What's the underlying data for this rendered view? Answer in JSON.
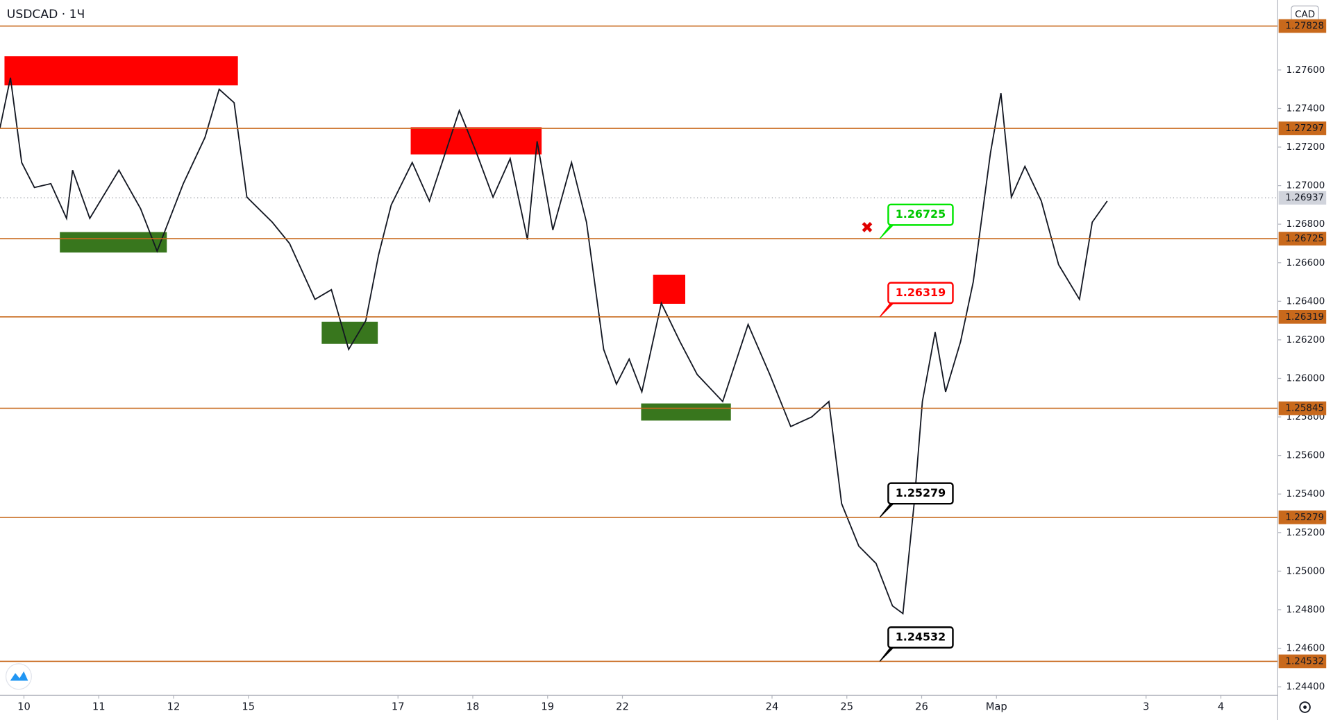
{
  "chart_data": {
    "type": "line",
    "title": "USDCAD · 1Ч",
    "currency": "CAD",
    "color": "#131722",
    "x": [
      -0.32,
      -0.18,
      -0.03,
      0.14,
      0.36,
      0.57,
      0.65,
      0.88,
      1.27,
      1.56,
      1.78,
      2.13,
      2.42,
      2.61,
      2.81,
      2.98,
      3.32,
      3.55,
      3.89,
      4.11,
      4.34,
      4.57,
      4.74,
      4.91,
      5.19,
      5.42,
      5.59,
      5.82,
      6.05,
      6.27,
      6.5,
      6.73,
      6.86,
      7.07,
      7.32,
      7.52,
      7.75,
      7.92,
      8.09,
      8.26,
      8.52,
      8.77,
      9.0,
      9.34,
      9.68,
      9.97,
      10.25,
      10.53,
      10.76,
      10.93,
      11.16,
      11.39,
      11.61,
      11.75,
      11.9,
      12.01,
      12.18,
      12.32,
      12.52,
      12.69,
      12.92,
      13.06,
      13.2,
      13.38,
      13.6,
      13.83,
      14.11,
      14.28,
      14.48
    ],
    "values": [
      1.273,
      1.2756,
      1.2712,
      1.2699,
      1.2701,
      1.2683,
      1.2708,
      1.2683,
      1.2708,
      1.2688,
      1.2666,
      1.2701,
      1.2725,
      1.275,
      1.2743,
      1.2694,
      1.2681,
      1.267,
      1.2641,
      1.2646,
      1.2615,
      1.263,
      1.2664,
      1.269,
      1.2712,
      1.2692,
      1.2712,
      1.2739,
      1.2717,
      1.2694,
      1.2714,
      1.2672,
      1.2723,
      1.2677,
      1.2712,
      1.2681,
      1.2615,
      1.2597,
      1.261,
      1.2593,
      1.2639,
      1.2619,
      1.2602,
      1.2588,
      1.2628,
      1.2602,
      1.2575,
      1.258,
      1.2588,
      1.2535,
      1.2513,
      1.2504,
      1.2482,
      1.2478,
      1.2535,
      1.2588,
      1.2624,
      1.2593,
      1.2619,
      1.265,
      1.2717,
      1.2748,
      1.2694,
      1.271,
      1.2692,
      1.2659,
      1.2641,
      1.2681,
      1.2692
    ],
    "xlim": [
      -0.32,
      16.76
    ],
    "ylim": [
      1.24356,
      1.27963
    ],
    "xticks": [
      {
        "value": 0,
        "label": "10"
      },
      {
        "value": 1,
        "label": "11"
      },
      {
        "value": 2,
        "label": "12"
      },
      {
        "value": 3,
        "label": "15"
      },
      {
        "value": 5,
        "label": "17"
      },
      {
        "value": 6,
        "label": "18"
      },
      {
        "value": 7,
        "label": "19"
      },
      {
        "value": 8,
        "label": "22"
      },
      {
        "value": 10,
        "label": "24"
      },
      {
        "value": 11,
        "label": "25"
      },
      {
        "value": 12,
        "label": "26"
      },
      {
        "value": 13,
        "label": "Мар"
      },
      {
        "value": 15,
        "label": "3"
      },
      {
        "value": 16,
        "label": "4"
      }
    ],
    "yticks": [
      {
        "value": 1.244,
        "label": "1.24400"
      },
      {
        "value": 1.246,
        "label": "1.24600"
      },
      {
        "value": 1.248,
        "label": "1.24800"
      },
      {
        "value": 1.25,
        "label": "1.25000"
      },
      {
        "value": 1.252,
        "label": "1.25200"
      },
      {
        "value": 1.254,
        "label": "1.25400"
      },
      {
        "value": 1.256,
        "label": "1.25600"
      },
      {
        "value": 1.258,
        "label": "1.25800"
      },
      {
        "value": 1.26,
        "label": "1.26000"
      },
      {
        "value": 1.262,
        "label": "1.26200"
      },
      {
        "value": 1.264,
        "label": "1.26400"
      },
      {
        "value": 1.266,
        "label": "1.26600"
      },
      {
        "value": 1.268,
        "label": "1.26800"
      },
      {
        "value": 1.27,
        "label": "1.27000"
      },
      {
        "value": 1.272,
        "label": "1.27200"
      },
      {
        "value": 1.274,
        "label": "1.27400"
      },
      {
        "value": 1.276,
        "label": "1.27600"
      }
    ],
    "levels": [
      1.27828,
      1.27297,
      1.26725,
      1.26319,
      1.25845,
      1.25279,
      1.24532
    ],
    "level_color": "#c8691c",
    "last_price": 1.26937,
    "zones": [
      {
        "x": [
          -0.26,
          2.86
        ],
        "y": [
          1.2752,
          1.27671
        ],
        "color": "#ff0000"
      },
      {
        "x": [
          5.17,
          6.92
        ],
        "y": [
          1.27162,
          1.27303
        ],
        "color": "#ff0000"
      },
      {
        "x": [
          8.41,
          8.84
        ],
        "y": [
          1.26387,
          1.26538
        ],
        "color": "#ff0000"
      },
      {
        "x": [
          0.48,
          1.91
        ],
        "y": [
          1.26653,
          1.26759
        ],
        "color": "#38761d"
      },
      {
        "x": [
          3.98,
          4.73
        ],
        "y": [
          1.26179,
          1.26294
        ],
        "color": "#38761d"
      },
      {
        "x": [
          8.25,
          9.45
        ],
        "y": [
          1.25781,
          1.2587
        ],
        "color": "#38761d"
      }
    ],
    "callout_x": 11.44,
    "callouts": [
      {
        "value": 1.26725,
        "color": "#00e600",
        "text_color": "#00c800"
      },
      {
        "value": 1.26319,
        "color": "#ff0000",
        "text_color": "#ff0000"
      },
      {
        "value": 1.25279,
        "color": "#000000",
        "text_color": "#000000"
      },
      {
        "value": 1.24532,
        "color": "#000000",
        "text_color": "#000000"
      }
    ]
  }
}
